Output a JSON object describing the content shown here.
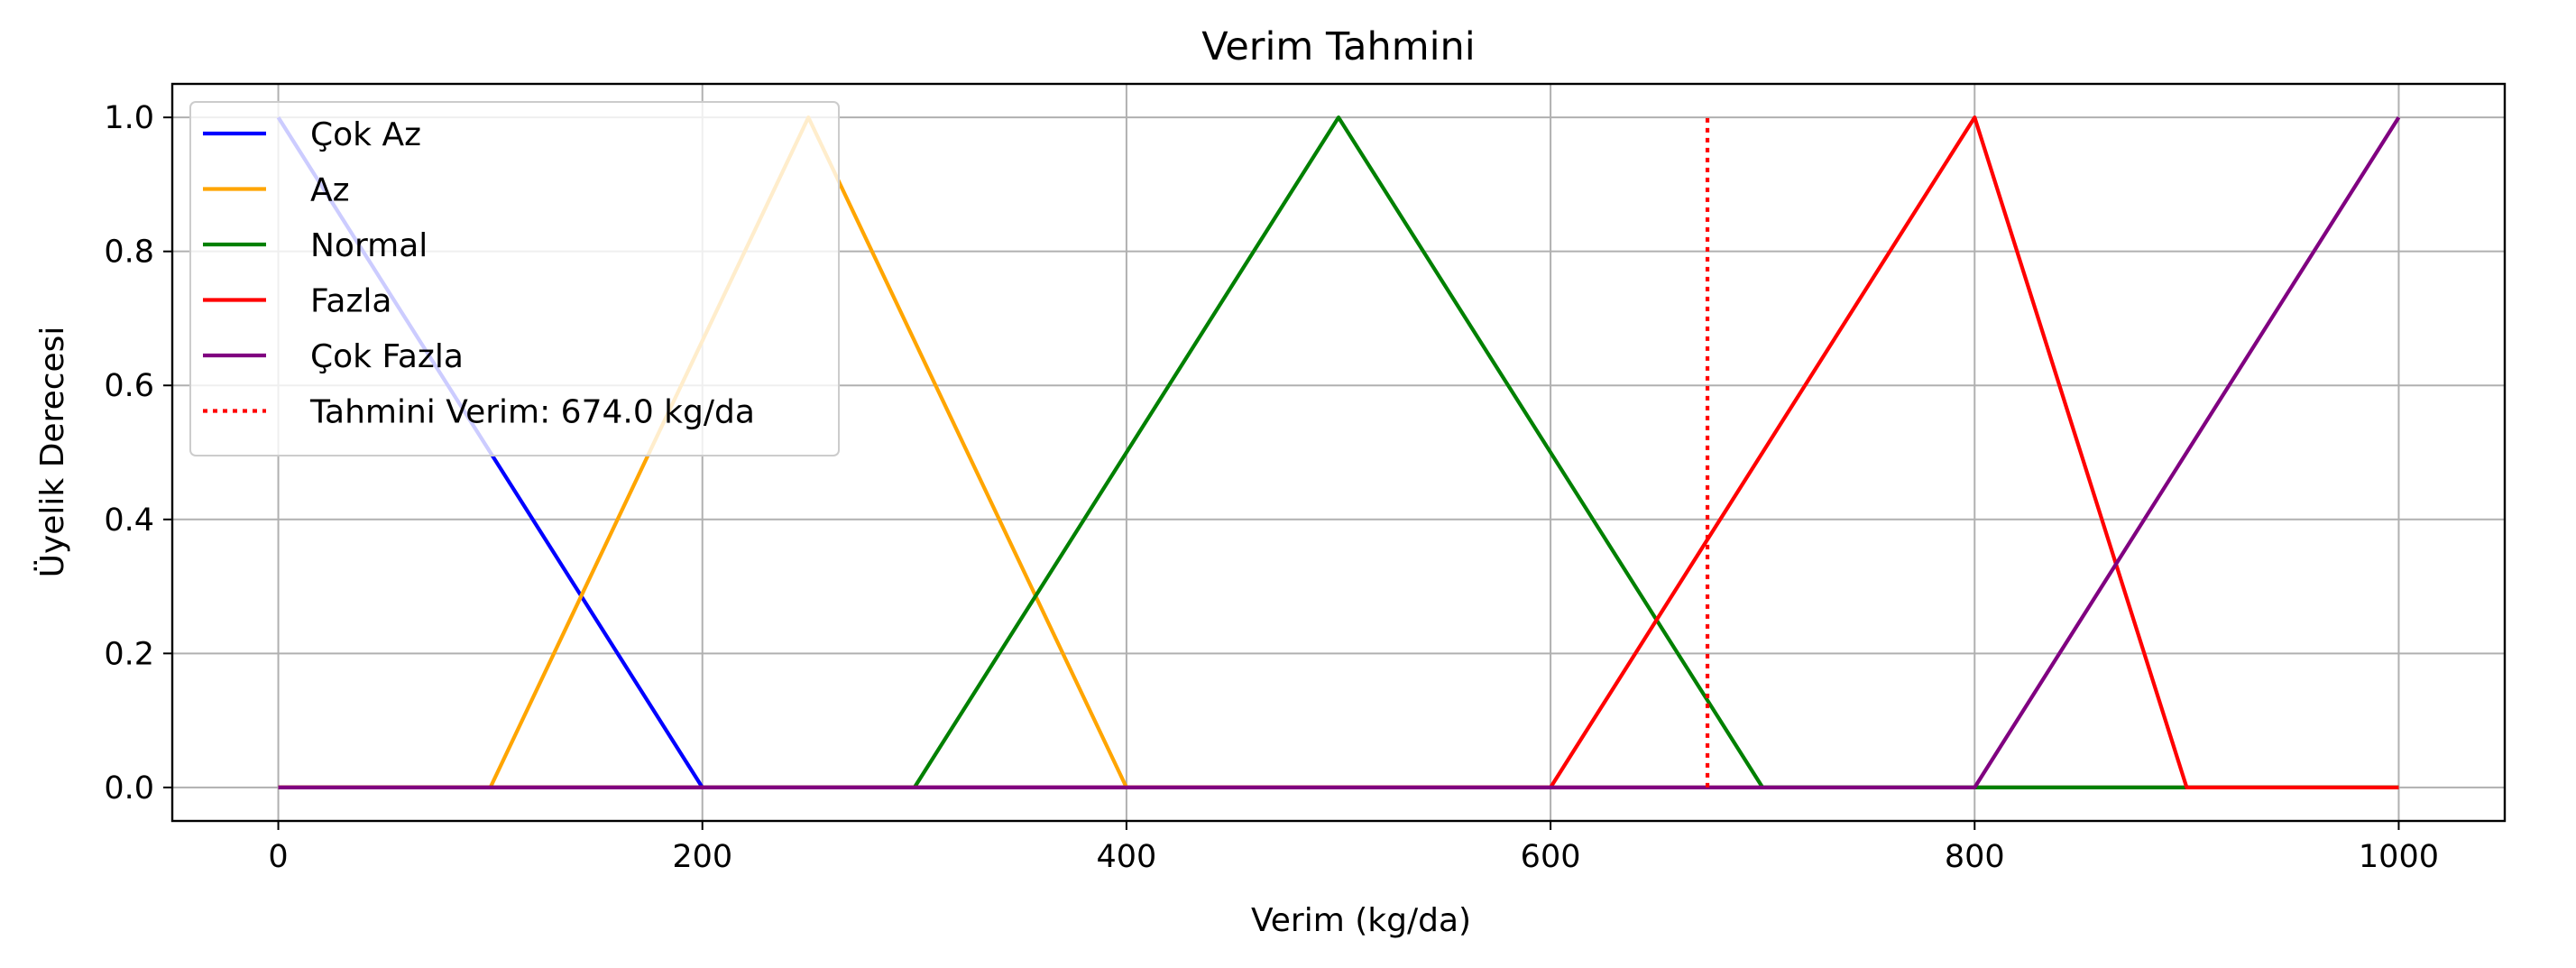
{
  "chart_data": {
    "type": "line",
    "title": "Verim Tahmini",
    "xlabel": "Verim (kg/da)",
    "ylabel": "Üyelik Derecesi",
    "xlim": [
      -50,
      1050
    ],
    "ylim": [
      -0.05,
      1.05
    ],
    "xticks": [
      0,
      200,
      400,
      600,
      800,
      1000
    ],
    "yticks": [
      0.0,
      0.2,
      0.4,
      0.6,
      0.8,
      1.0
    ],
    "xtick_labels": [
      "0",
      "200",
      "400",
      "600",
      "800",
      "1000"
    ],
    "ytick_labels": [
      "0.0",
      "0.2",
      "0.4",
      "0.6",
      "0.8",
      "1.0"
    ],
    "grid": true,
    "legend_position": "top-left",
    "series": [
      {
        "name": "Çok Az",
        "color": "#0000ff",
        "x": [
          0,
          200,
          1000
        ],
        "y": [
          1,
          0,
          0
        ]
      },
      {
        "name": "Az",
        "color": "#ffa500",
        "x": [
          0,
          100,
          250,
          400,
          1000
        ],
        "y": [
          0,
          0,
          1,
          0,
          0
        ]
      },
      {
        "name": "Normal",
        "color": "#008000",
        "x": [
          0,
          300,
          500,
          700,
          1000
        ],
        "y": [
          0,
          0,
          1,
          0,
          0
        ]
      },
      {
        "name": "Fazla",
        "color": "#ff0000",
        "x": [
          0,
          600,
          800,
          900,
          1000
        ],
        "y": [
          0,
          0,
          1,
          0,
          0
        ]
      },
      {
        "name": "Çok Fazla",
        "color": "#800080",
        "x": [
          0,
          800,
          1000
        ],
        "y": [
          0,
          0,
          1
        ]
      }
    ],
    "marker_line": {
      "name": "Tahmini Verim: 674.0 kg/da",
      "color": "#ff0000",
      "style": "dotted",
      "x": 674.0,
      "y": [
        0,
        1
      ]
    }
  }
}
